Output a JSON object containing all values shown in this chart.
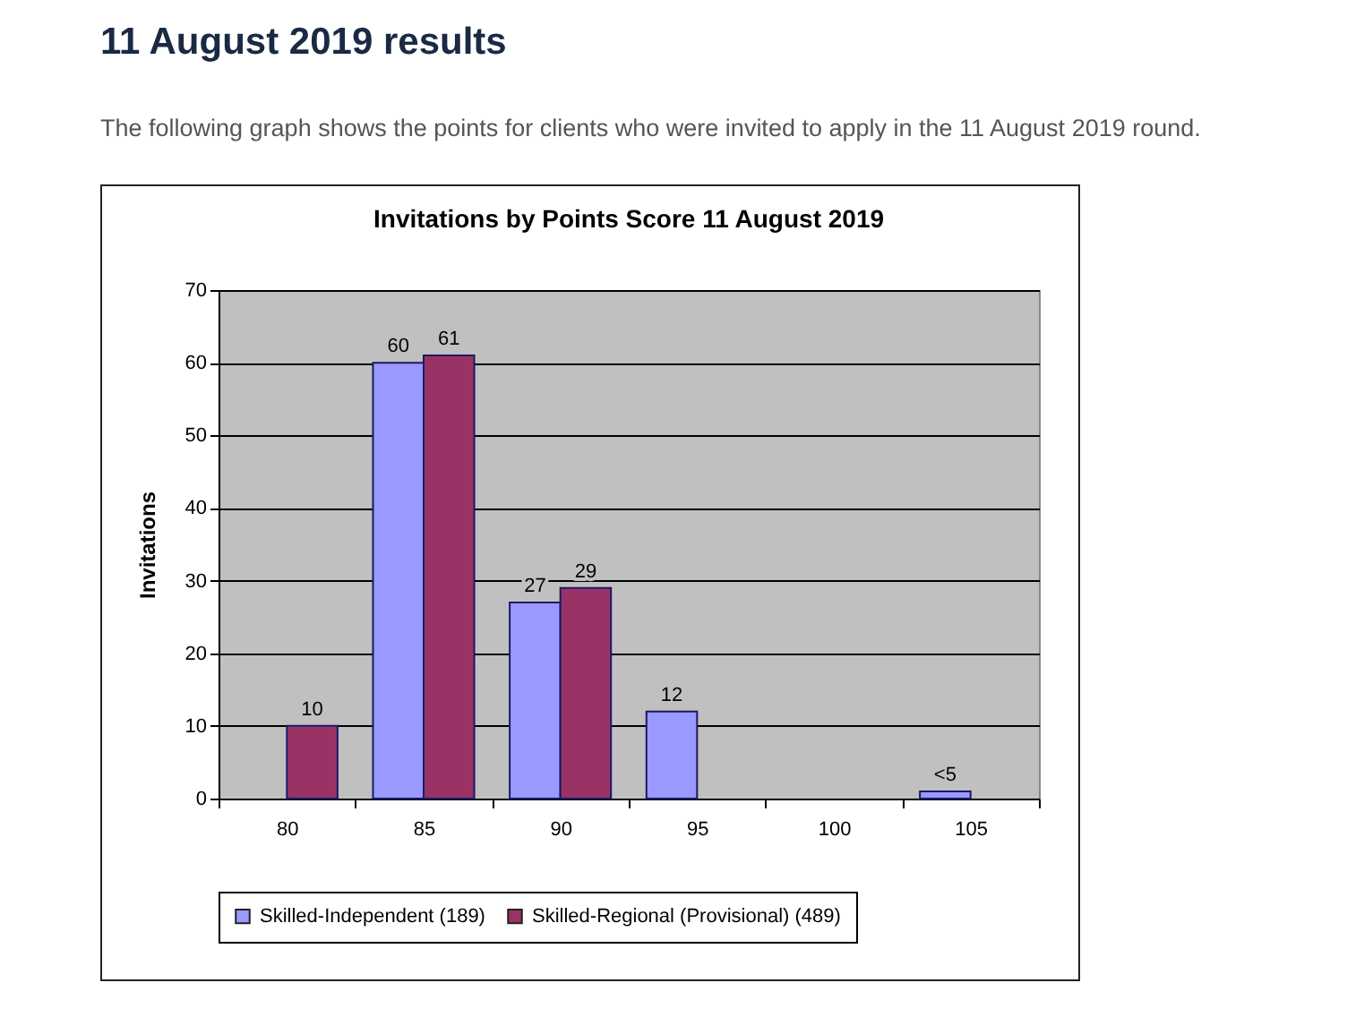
{
  "chart_data": {
    "type": "bar",
    "title": "Invitations by Points Score 11 August 2019",
    "annotations": [
      "11 August 2019 results",
      "The following graph shows the points for clients who were invited to apply in the 11 August 2019 round."
    ],
    "ylabel": "Invitations",
    "categories": [
      "80",
      "85",
      "90",
      "95",
      "100",
      "105"
    ],
    "series": [
      {
        "name": "Skilled-Independent (189)",
        "color": "#9999ff",
        "values": [
          null,
          60,
          27,
          12,
          null,
          1
        ],
        "value_labels": [
          null,
          "60",
          "27",
          "12",
          null,
          "<5"
        ]
      },
      {
        "name": "Skilled-Regional (Provisional) (489)",
        "color": "#993366",
        "values": [
          10,
          61,
          29,
          null,
          null,
          null
        ],
        "value_labels": [
          "10",
          "61",
          "29",
          null,
          null,
          null
        ]
      }
    ],
    "ylim": [
      0,
      70
    ],
    "yticks": [
      0,
      10,
      20,
      30,
      40,
      50,
      60,
      70
    ],
    "grid": "y",
    "legend": "bottom"
  }
}
